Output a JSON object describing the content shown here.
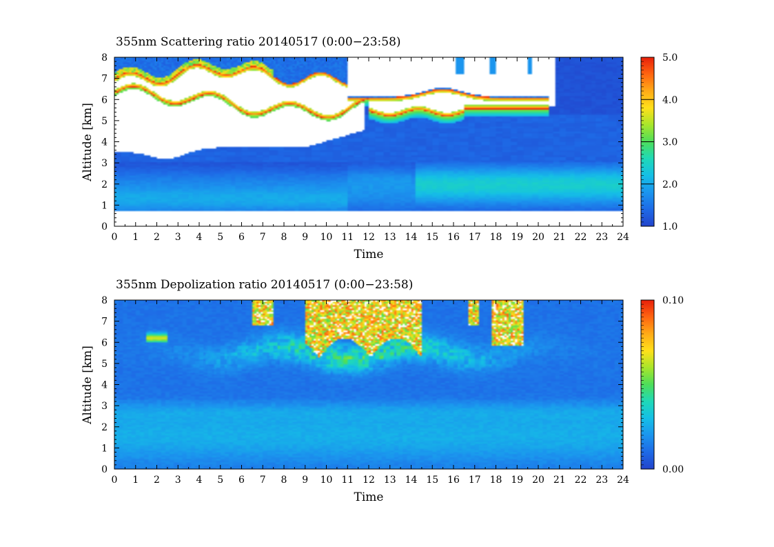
{
  "chart_data": [
    {
      "type": "heatmap",
      "title": "355nm Scattering ratio  20140517 (0:00−23:58)",
      "xlabel": "Time",
      "ylabel": "Altitude [km]",
      "xlim": [
        0,
        24
      ],
      "ylim": [
        0,
        8
      ],
      "xticks": [
        "0",
        "1",
        "2",
        "3",
        "4",
        "5",
        "6",
        "7",
        "8",
        "9",
        "10",
        "11",
        "12",
        "13",
        "14",
        "15",
        "16",
        "17",
        "18",
        "19",
        "20",
        "21",
        "22",
        "23",
        "24"
      ],
      "yticks": [
        "0",
        "1",
        "2",
        "3",
        "4",
        "5",
        "6",
        "7",
        "8"
      ],
      "colorbar": {
        "min": 1.0,
        "max": 5.0,
        "labels": [
          "1.0",
          "2.0",
          "3.0",
          "4.0",
          "5.0"
        ]
      },
      "features": {
        "surface_gap_top_km": 0.7,
        "aerosol_layer_km": [
          0.7,
          2.9
        ],
        "peak_value_approx": 2.7,
        "cloud_base_km": [
          5.3,
          5.8
        ],
        "cloud_top_km": [
          7.0,
          7.5
        ],
        "clear_above_km_after_h": 20.5
      }
    },
    {
      "type": "heatmap",
      "title": "355nm Depolization ratio  20140517 (0:00−23:58)",
      "xlabel": "Time",
      "ylabel": "Altitude [km]",
      "xlim": [
        0,
        24
      ],
      "ylim": [
        0,
        8
      ],
      "xticks": [
        "0",
        "1",
        "2",
        "3",
        "4",
        "5",
        "6",
        "7",
        "8",
        "9",
        "10",
        "11",
        "12",
        "13",
        "14",
        "15",
        "16",
        "17",
        "18",
        "19",
        "20",
        "21",
        "22",
        "23",
        "24"
      ],
      "yticks": [
        "0",
        "1",
        "2",
        "3",
        "4",
        "5",
        "6",
        "7",
        "8"
      ],
      "colorbar": {
        "min": 0.0,
        "max": 0.1,
        "labels": [
          "0.00",
          "0.10"
        ]
      },
      "features": {
        "background_value_approx": 0.01,
        "aerosol_layer_km": [
          0.0,
          3.0
        ],
        "aerosol_value_approx": 0.025,
        "ice_cloud_km": [
          5.0,
          8.0
        ],
        "ice_cloud_hours": [
          [
            6.5,
            7.5
          ],
          [
            9.0,
            14.5
          ],
          [
            16.7,
            17.2
          ],
          [
            17.8,
            19.3
          ]
        ]
      }
    }
  ],
  "colors": {
    "scale": [
      "#2244cc",
      "#1e6ae6",
      "#1b95ee",
      "#15bfe6",
      "#1fd9b8",
      "#4dde5a",
      "#a8e62b",
      "#ffe01a",
      "#ffab17",
      "#ff6510",
      "#e8200a"
    ]
  }
}
